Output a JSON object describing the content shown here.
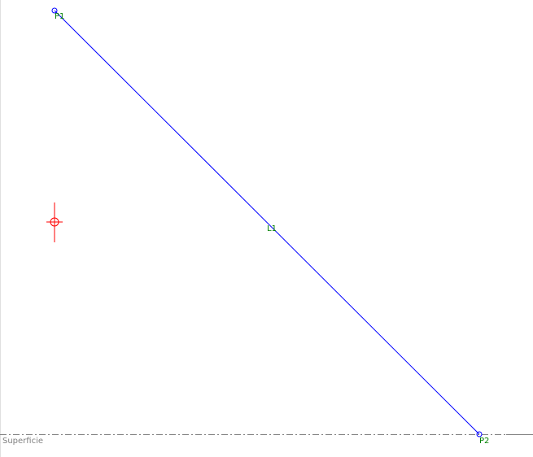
{
  "points": [
    {
      "label": "P1",
      "color": "#008000"
    },
    {
      "label": "P2",
      "color": "#008000"
    }
  ],
  "line": {
    "label": "L1",
    "color": "#0000ff",
    "label_color": "#008000"
  },
  "surface": {
    "label": "Superficie",
    "color": "#808080"
  },
  "cursor": {
    "icon": "crosshair-icon",
    "color": "#ff0000"
  }
}
